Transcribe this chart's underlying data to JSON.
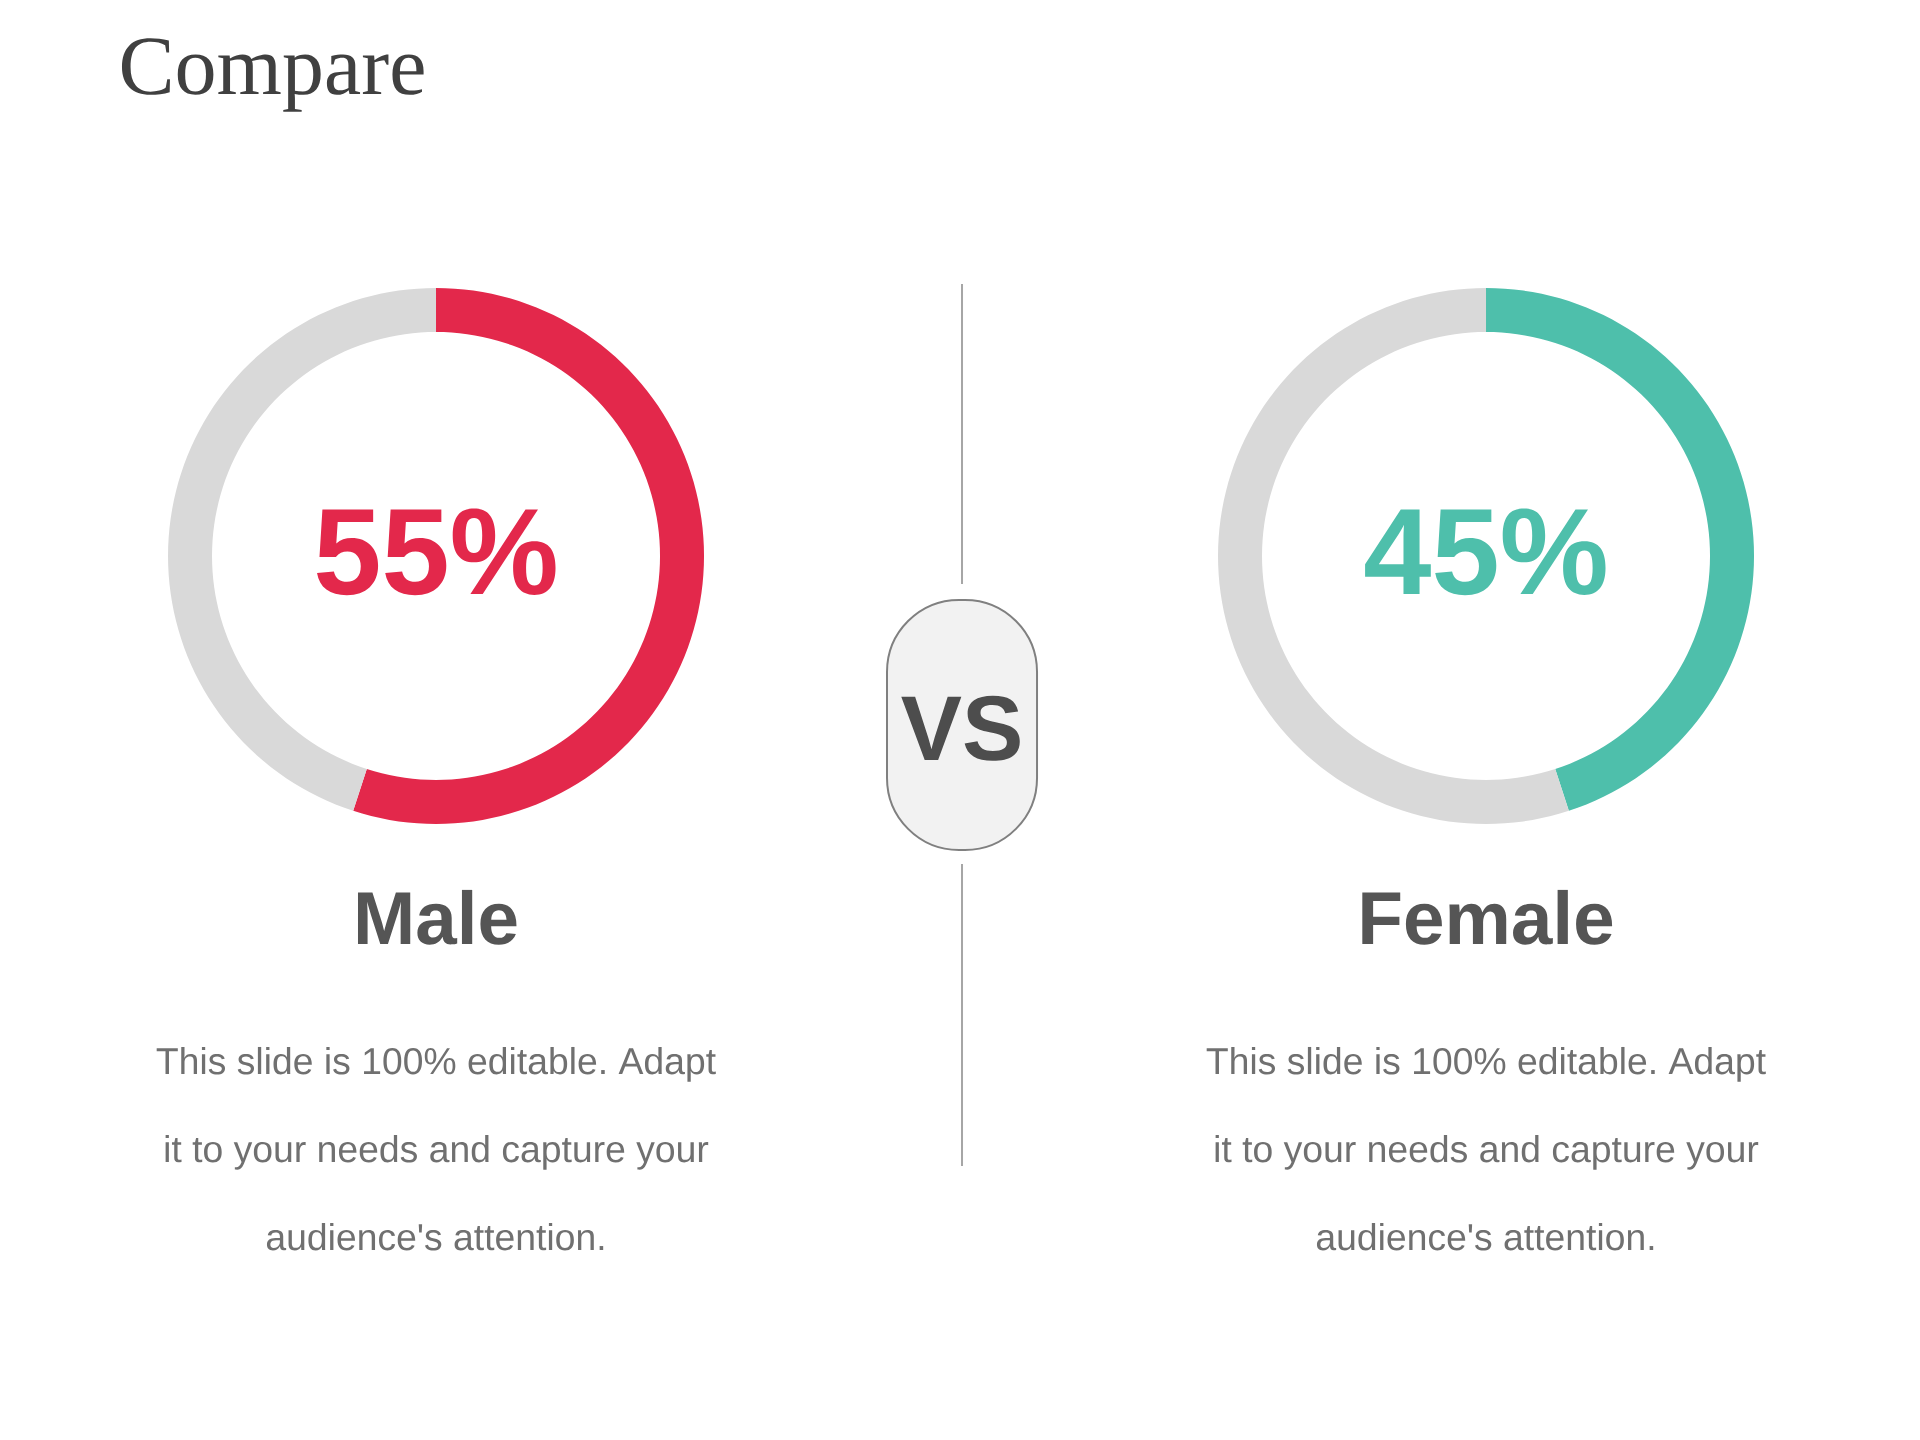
{
  "chart_data": [
    {
      "type": "other",
      "title": "Compare",
      "annotations": [
        "VS"
      ]
    },
    {
      "type": "donut",
      "title": "Male",
      "categories": [
        null,
        null
      ],
      "values": [
        55,
        45
      ],
      "colors": [
        "#e3284b",
        "#d9d9d9"
      ],
      "value_labels": [
        "55%",
        null
      ],
      "annotations": [
        "This slide is 100% editable. Adapt it to your needs and capture your audience's attention."
      ]
    },
    {
      "type": "donut",
      "title": "Female",
      "categories": [
        null,
        null
      ],
      "values": [
        45,
        55
      ],
      "colors": [
        "#4ebfab",
        "#d9d9d9"
      ],
      "value_labels": [
        "45%",
        null
      ],
      "annotations": [
        "This slide is 100% editable. Adapt it to your needs and capture your audience's attention."
      ]
    }
  ]
}
